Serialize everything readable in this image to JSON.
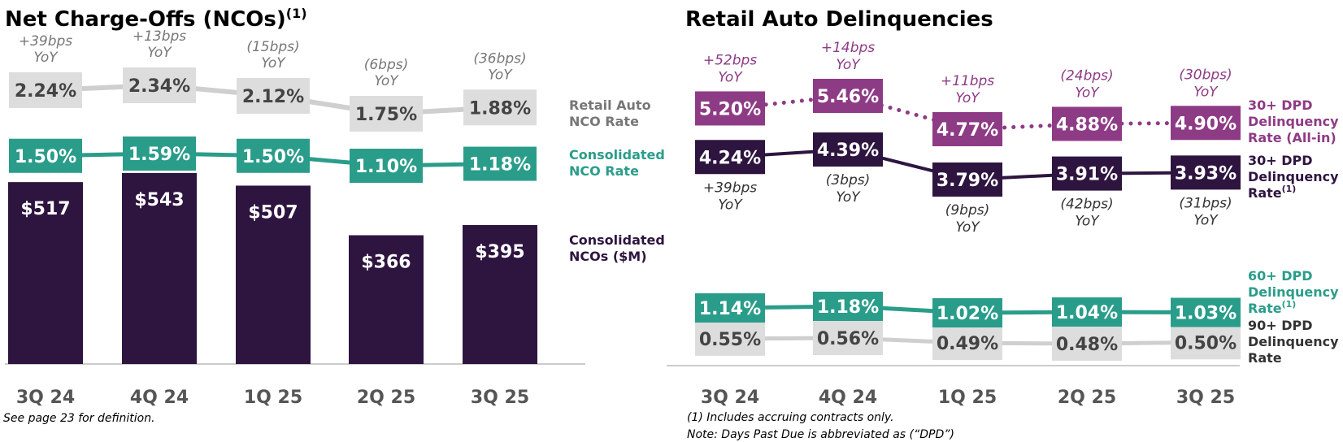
{
  "colors": {
    "dark_purple": "#2e1540",
    "teal": "#2a9d8a",
    "gray_box": "#dddddd",
    "gray_line": "#cfcfcf",
    "gray_text": "#444444",
    "gray_yoy": "#777777",
    "magenta": "#8e3b86",
    "axis": "#cccccc"
  },
  "chart_data": [
    {
      "type": "bar",
      "title": "Net Charge-Offs (NCOs)",
      "title_superscript": "(1)",
      "categories": [
        "3Q 24",
        "4Q 24",
        "1Q 25",
        "2Q 25",
        "3Q 25"
      ],
      "ylim": [
        0,
        600
      ],
      "series": [
        {
          "name": "Consolidated NCOs ($M)",
          "kind": "bar",
          "values": [
            517,
            543,
            507,
            366,
            395
          ],
          "labels": [
            "$517",
            "$543",
            "$507",
            "$366",
            "$395"
          ]
        },
        {
          "name": "Consolidated NCO Rate",
          "kind": "line",
          "values": [
            1.5,
            1.59,
            1.5,
            1.1,
            1.18
          ],
          "labels": [
            "1.50%",
            "1.59%",
            "1.50%",
            "1.10%",
            "1.18%"
          ]
        },
        {
          "name": "Retail Auto NCO Rate",
          "kind": "line",
          "values": [
            2.24,
            2.34,
            2.12,
            1.75,
            1.88
          ],
          "labels": [
            "2.24%",
            "2.34%",
            "2.12%",
            "1.75%",
            "1.88%"
          ],
          "yoy_prefix": [
            "+39bps",
            "+13bps",
            "(15bps)",
            "(6bps)",
            "(36bps)"
          ],
          "yoy_suffix": "YoY"
        }
      ],
      "legend_labels": {
        "retail_line1": "Retail Auto",
        "retail_line2": "NCO Rate",
        "cons_rate_line1": "Consolidated",
        "cons_rate_line2": "NCO Rate",
        "ncos_line1": "Consolidated",
        "ncos_line2": "NCOs ($M)"
      },
      "footnote": "See page 23 for definition."
    },
    {
      "type": "line",
      "title": "Retail Auto Delinquencies",
      "categories": [
        "3Q 24",
        "4Q 24",
        "1Q 25",
        "2Q 25",
        "3Q 25"
      ],
      "series": [
        {
          "name": "30+ DPD Delinquency Rate (All-in)",
          "values": [
            5.2,
            5.46,
            4.77,
            4.88,
            4.9
          ],
          "labels": [
            "5.20%",
            "5.46%",
            "4.77%",
            "4.88%",
            "4.90%"
          ],
          "yoy": [
            "+52bps",
            "+14bps",
            "+11bps",
            "(24bps)",
            "(30bps)"
          ],
          "line_style": "dotted"
        },
        {
          "name": "30+ DPD Delinquency Rate",
          "values": [
            4.24,
            4.39,
            3.79,
            3.91,
            3.93
          ],
          "labels": [
            "4.24%",
            "4.39%",
            "3.79%",
            "3.91%",
            "3.93%"
          ],
          "yoy": [
            "+39bps",
            "(3bps)",
            "(9bps)",
            "(42bps)",
            "(31bps)"
          ],
          "line_style": "solid"
        },
        {
          "name": "60+ DPD Delinquency Rate",
          "values": [
            1.14,
            1.18,
            1.02,
            1.04,
            1.03
          ],
          "labels": [
            "1.14%",
            "1.18%",
            "1.02%",
            "1.04%",
            "1.03%"
          ],
          "line_style": "solid"
        },
        {
          "name": "90+ DPD Delinquency Rate",
          "values": [
            0.55,
            0.56,
            0.49,
            0.48,
            0.5
          ],
          "labels": [
            "0.55%",
            "0.56%",
            "0.49%",
            "0.48%",
            "0.50%"
          ],
          "line_style": "solid"
        }
      ],
      "yoy_suffix": "YoY",
      "legend_labels": {
        "allin_l1": "30+ DPD",
        "allin_l2": "Delinquency",
        "allin_l3": "Rate (All-in)",
        "dpd30_l1": "30+ DPD",
        "dpd30_l2": "Delinquency",
        "dpd30_l3": "Rate",
        "dpd30_sup": "(1)",
        "dpd60_l1": "60+ DPD",
        "dpd60_l2": "Delinquency",
        "dpd60_l3": "Rate",
        "dpd60_sup": "(1)",
        "dpd90_l1": "90+ DPD",
        "dpd90_l2": "Delinquency",
        "dpd90_l3": "Rate"
      },
      "footnotes": [
        "(1) Includes accruing contracts only.",
        "Note: Days Past Due is abbreviated as (“DPD”)"
      ]
    }
  ]
}
